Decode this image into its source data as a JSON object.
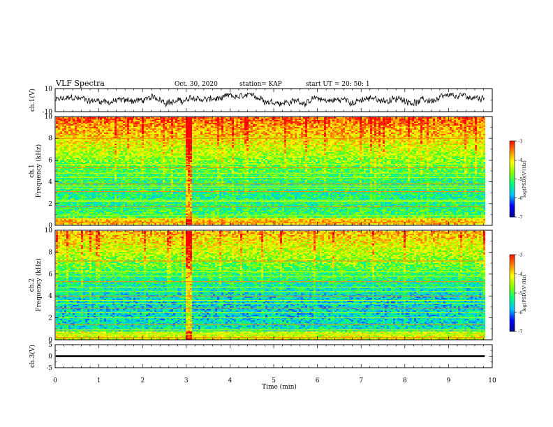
{
  "header": {
    "title": "VLF Spectra",
    "date": "Oct. 30, 2020",
    "station": "station= KAP",
    "start": "start  UT  =   20: 50: 1"
  },
  "chart_data": [
    {
      "type": "line",
      "id": "ch1-waveform",
      "ylabel": "ch.1(V)",
      "ylim": [
        -10,
        10
      ],
      "yticks": [
        "10",
        "-10"
      ],
      "xlim": [
        0,
        10
      ],
      "data_extent_min": 9.83,
      "amplitude_range": [
        -6,
        6
      ],
      "color": "#000000"
    },
    {
      "type": "heatmap",
      "id": "ch1-spectrogram",
      "ylabel": "ch.1\nFrequency (kHz)",
      "ylim": [
        0,
        10
      ],
      "yticks": [
        "0",
        "2",
        "4",
        "6",
        "8",
        "10"
      ],
      "xlim": [
        0,
        10
      ],
      "data_extent_min": 9.83,
      "hum_lines_khz": [
        0.3,
        0.6,
        0.9,
        1.7,
        2.2,
        2.3,
        3.1,
        3.4,
        3.6,
        3.8,
        4.4,
        4.8,
        5.3,
        5.6,
        6.4,
        8.0
      ],
      "impulse_min": 3.05,
      "colorbar": {
        "label": "log(PSD)(V²/Hz)",
        "ticks": [
          "-3",
          "-4",
          "-5",
          "-6",
          "-7"
        ],
        "range": [
          -7,
          -3
        ]
      }
    },
    {
      "type": "heatmap",
      "id": "ch2-spectrogram",
      "ylabel": "ch.2\nFrequency (kHz)",
      "ylim": [
        0,
        10
      ],
      "yticks": [
        "0",
        "2",
        "4",
        "6",
        "8",
        "10"
      ],
      "xlim": [
        0,
        10
      ],
      "data_extent_min": 9.83,
      "hum_lines_khz": [
        0.2,
        0.5,
        0.9,
        1.4,
        2.0,
        2.5,
        2.9,
        3.3,
        3.6,
        4.0,
        4.4,
        4.8,
        5.3,
        5.8,
        6.2,
        7.2
      ],
      "impulse_min": 3.05,
      "colorbar": {
        "label": "log(PSD)(V²/Hz)",
        "ticks": [
          "-3",
          "-4",
          "-5",
          "-6",
          "-7"
        ],
        "range": [
          -7,
          -3
        ]
      }
    },
    {
      "type": "line",
      "id": "ch3-waveform",
      "ylabel": "ch.3(V)",
      "ylim": [
        -5,
        5
      ],
      "yticks": [
        "5",
        "0",
        "-5"
      ],
      "xlim": [
        0,
        10
      ],
      "data_extent_min": 9.83,
      "band_range_v": [
        -0.4,
        0.4
      ],
      "color": "#000000"
    }
  ],
  "xaxis": {
    "label": "Time  (min)",
    "ticks": [
      "0",
      "1",
      "2",
      "3",
      "4",
      "5",
      "6",
      "7",
      "8",
      "9",
      "10"
    ],
    "range": [
      0,
      10
    ]
  },
  "colors": {
    "spectrum": [
      "#00008b",
      "#0000ff",
      "#00bfff",
      "#00ff80",
      "#80ff00",
      "#ffff00",
      "#ff8000",
      "#ff0000",
      "#ffffff"
    ]
  }
}
